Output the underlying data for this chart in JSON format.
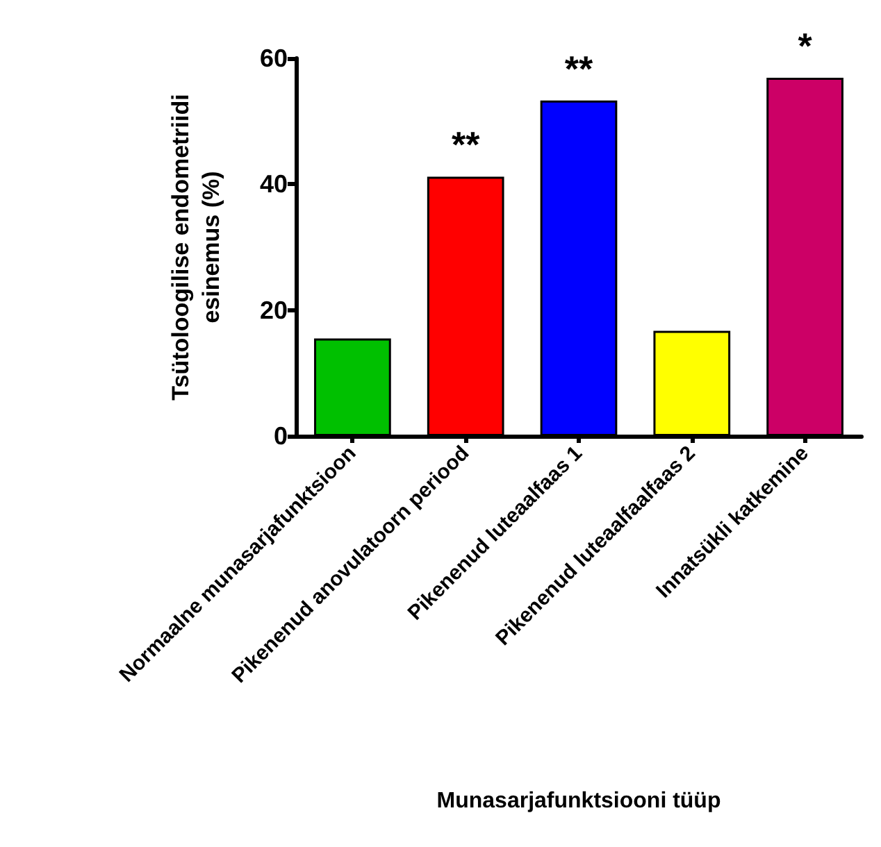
{
  "chart_data": {
    "type": "bar",
    "xlabel": "Munasarjafunktsiooni tüüp",
    "ylabel": "Tsütoloogilise endometriidi\nesinemus (%)",
    "categories": [
      "Normaalne munasarjafunktsioon",
      "Pikenenud anovulatoorn periood",
      "Pikenenud luteaalfaas 1",
      "Pikenenud luteaalfaalfaas 2",
      "Innatsükli katkemine"
    ],
    "values": [
      15.5,
      41.2,
      53.3,
      16.7,
      56.9
    ],
    "colors": [
      "#00c000",
      "#ff0000",
      "#0000ff",
      "#ffff00",
      "#cc0066"
    ],
    "ylim": [
      0,
      60
    ],
    "yticks": [
      0,
      20,
      40,
      60
    ],
    "grid": false,
    "annotations": [
      {
        "text": "**",
        "x": "Pikenenud anovulatoorn periood",
        "y": 41.2
      },
      {
        "text": "**",
        "x": "Pikenenud luteaalfaas 1",
        "y": 53.3
      },
      {
        "text": "*",
        "x": "Innatsükli katkemine",
        "y": 56.9
      }
    ]
  }
}
